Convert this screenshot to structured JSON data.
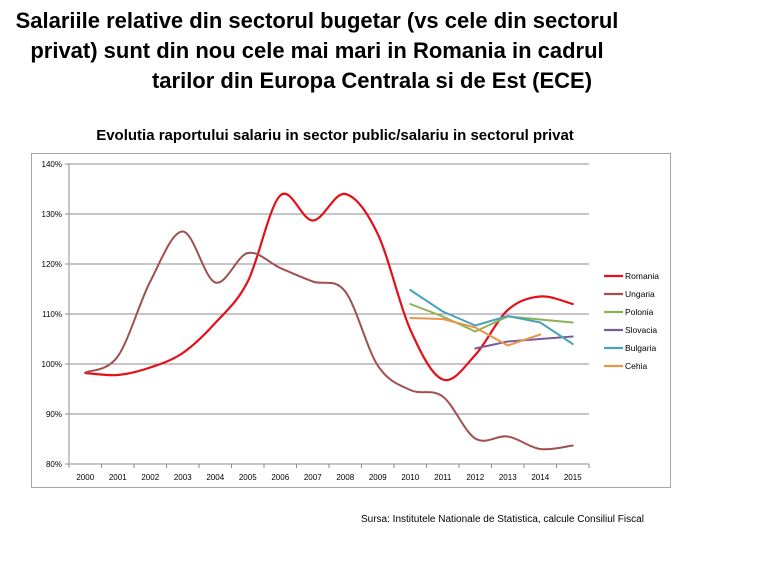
{
  "headline": {
    "lines": [
      "Salariile relative din sectorul bugetar (vs cele din sectorul",
      "privat) sunt din nou cele mai mari in Romania in cadrul",
      "tarilor din Europa Centrala si de Est (ECE)"
    ]
  },
  "source_note": "Sursa: Institutele Nationale de Statistica, calcule Consiliul Fiscal",
  "chart_data": {
    "type": "line",
    "title": "Evolutia raportului salariu in sector public/salariu in sectorul privat",
    "xlabel": "",
    "ylabel": "",
    "ylim": [
      80,
      140
    ],
    "y_ticks": [
      80,
      90,
      100,
      110,
      120,
      130,
      140
    ],
    "y_tick_labels": [
      "80%",
      "90%",
      "100%",
      "110%",
      "120%",
      "130%",
      "140%"
    ],
    "grid": true,
    "smooth": true,
    "legend_position": "right",
    "categories": [
      "2000",
      "2001",
      "2002",
      "2003",
      "2004",
      "2005",
      "2006",
      "2007",
      "2008",
      "2009",
      "2010",
      "2011",
      "2012",
      "2013",
      "2014",
      "2015"
    ],
    "series": [
      {
        "name": "Romania",
        "color": "#e3101a",
        "smooth": true,
        "values": [
          98.2,
          97.8,
          99.3,
          102.2,
          108.2,
          116.5,
          133.7,
          128.7,
          134.0,
          126.0,
          106.9,
          96.9,
          101.8,
          110.8,
          113.5,
          112.0
        ]
      },
      {
        "name": "Ungaria",
        "color": "#a0504f",
        "smooth": true,
        "values": [
          98.3,
          101.5,
          116.5,
          126.5,
          116.3,
          122.2,
          119.2,
          116.5,
          114.5,
          99.7,
          94.8,
          93.5,
          85.1,
          85.5,
          83.0,
          83.7
        ]
      },
      {
        "name": "Polonia",
        "color": "#8db255",
        "smooth": false,
        "values": [
          null,
          null,
          null,
          null,
          null,
          null,
          null,
          null,
          null,
          null,
          112.0,
          109.5,
          106.5,
          109.5,
          108.9,
          108.3
        ]
      },
      {
        "name": "Slovacia",
        "color": "#7a5b99",
        "smooth": false,
        "values": [
          null,
          null,
          null,
          null,
          null,
          null,
          null,
          null,
          null,
          null,
          null,
          null,
          103.1,
          104.5,
          105.0,
          105.5
        ]
      },
      {
        "name": "Bulgaria",
        "color": "#4aa3ba",
        "smooth": false,
        "values": [
          null,
          null,
          null,
          null,
          null,
          null,
          null,
          null,
          null,
          null,
          114.8,
          110.5,
          107.7,
          109.6,
          108.3,
          104.0
        ]
      },
      {
        "name": "Cehia",
        "color": "#e9964c",
        "smooth": false,
        "values": [
          null,
          null,
          null,
          null,
          null,
          null,
          null,
          null,
          null,
          null,
          109.2,
          109.0,
          107.3,
          103.7,
          105.9,
          null
        ]
      }
    ]
  }
}
